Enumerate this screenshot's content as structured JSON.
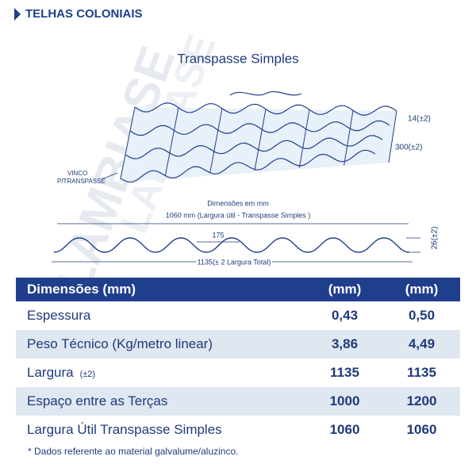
{
  "header": {
    "title": "TELHAS COLONIAIS"
  },
  "watermark": "LAMBIASE",
  "diagram": {
    "title": "Transpasse Simples",
    "overlap": "14(±2)",
    "pitch": "300(±2)",
    "crease": [
      "VINCO",
      "P/TRANSPASSE"
    ],
    "units": "Dimensões em mm",
    "useful_width": "1060 mm (Largura útil - Transpasse Simples )",
    "wave_width": "175",
    "total_width": "1135(± 2 Largura Total)",
    "height": "26(±2)"
  },
  "table": {
    "header": [
      "Dimensões (mm)",
      "(mm)",
      "(mm)"
    ],
    "rows": [
      {
        "label": "Espessura",
        "values": [
          "0,43",
          "0,50"
        ]
      },
      {
        "label": "Peso Técnico (Kg/metro linear)",
        "values": [
          "3,86",
          "4,49"
        ]
      },
      {
        "label": "Largura",
        "note": "(±2)",
        "values": [
          "1135",
          "1135"
        ]
      },
      {
        "label": "Espaço entre as Terças",
        "values": [
          "1000",
          "1200"
        ]
      },
      {
        "label": "Largura Útil Transpasse Simples",
        "values": [
          "1060",
          "1060"
        ]
      }
    ]
  },
  "footnote": "* Dados referente ao material galvalume/aluzinco."
}
